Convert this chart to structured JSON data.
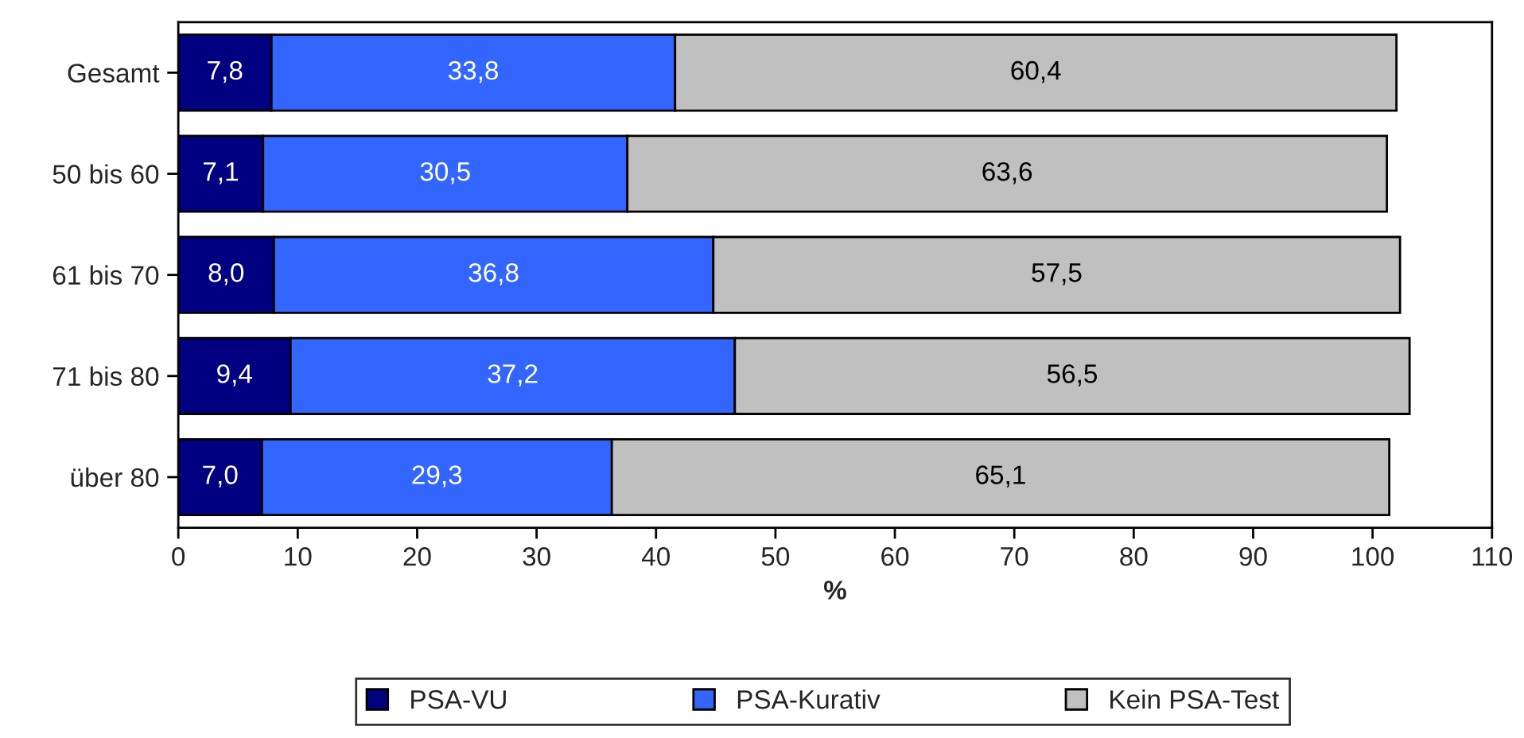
{
  "chart_data": {
    "type": "bar",
    "orientation": "horizontal",
    "stacked": true,
    "xlabel": "%",
    "categories": [
      "Gesamt",
      "50 bis 60",
      "61 bis 70",
      "71 bis 80",
      "über 80"
    ],
    "series": [
      {
        "name": "PSA-VU",
        "color": "#000080",
        "values": [
          7.8,
          7.1,
          8.0,
          9.4,
          7.0
        ],
        "value_labels": [
          "7,8",
          "7,1",
          "8,0",
          "9,4",
          "7,0"
        ]
      },
      {
        "name": "PSA-Kurativ",
        "color": "#3366ff",
        "values": [
          33.8,
          30.5,
          36.8,
          37.2,
          29.3
        ],
        "value_labels": [
          "33,8",
          "30,5",
          "36,8",
          "37,2",
          "29,3"
        ]
      },
      {
        "name": "Kein PSA-Test",
        "color": "#c0c0c0",
        "values": [
          60.4,
          63.6,
          57.5,
          56.5,
          65.1
        ],
        "value_labels": [
          "60,4",
          "63,6",
          "57,5",
          "56,5",
          "65,1"
        ]
      }
    ],
    "xlim": [
      0,
      110
    ],
    "xticks": [
      0,
      10,
      20,
      30,
      40,
      50,
      60,
      70,
      80,
      90,
      100,
      110
    ],
    "grid": false,
    "legend": "bottom"
  }
}
